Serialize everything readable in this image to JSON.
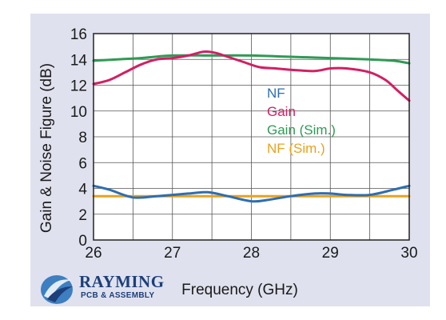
{
  "watermark": {
    "title": "RAYMING",
    "subtitle": "PCB & ASSEMBLY"
  },
  "chart_data": {
    "type": "line",
    "xlabel": "Frequency (GHz)",
    "ylabel": "Gain & Noise Figure (dB)",
    "xlim": [
      26,
      30
    ],
    "ylim": [
      0,
      16
    ],
    "xticks": [
      "26",
      "27",
      "28",
      "29",
      "30"
    ],
    "yticks": [
      "0",
      "2",
      "4",
      "6",
      "8",
      "10",
      "12",
      "14",
      "16"
    ],
    "grid": true,
    "legend_position": "center-right",
    "series": [
      {
        "name": "NF",
        "color": "#2e6eb0",
        "x": [
          26,
          26.2,
          26.5,
          26.8,
          27,
          27.2,
          27.45,
          27.7,
          28,
          28.2,
          28.5,
          28.8,
          29,
          29.2,
          29.5,
          29.8,
          30
        ],
        "y": [
          4.2,
          3.9,
          3.3,
          3.4,
          3.5,
          3.6,
          3.7,
          3.4,
          3.0,
          3.1,
          3.4,
          3.6,
          3.6,
          3.5,
          3.5,
          3.9,
          4.2
        ]
      },
      {
        "name": "Gain",
        "color": "#d21f63",
        "x": [
          26,
          26.2,
          26.4,
          26.6,
          26.8,
          27,
          27.2,
          27.4,
          27.55,
          27.7,
          27.9,
          28.1,
          28.3,
          28.5,
          28.8,
          29,
          29.2,
          29.5,
          29.7,
          29.85,
          30
        ],
        "y": [
          12.1,
          12.4,
          13.0,
          13.6,
          14.0,
          14.1,
          14.3,
          14.6,
          14.5,
          14.2,
          13.8,
          13.4,
          13.3,
          13.2,
          13.1,
          13.3,
          13.3,
          13.0,
          12.4,
          11.6,
          10.8
        ]
      },
      {
        "name": "Gain (Sim.)",
        "color": "#2f9a55",
        "x": [
          26,
          26.3,
          26.6,
          27,
          27.5,
          28,
          28.5,
          29,
          29.5,
          29.8,
          30
        ],
        "y": [
          13.9,
          14.0,
          14.1,
          14.3,
          14.3,
          14.3,
          14.2,
          14.1,
          14.0,
          13.9,
          13.7
        ]
      },
      {
        "name": "NF (Sim.)",
        "color": "#e8a21e",
        "x": [
          26,
          27,
          28,
          29,
          30
        ],
        "y": [
          3.4,
          3.4,
          3.4,
          3.4,
          3.4
        ]
      }
    ]
  }
}
